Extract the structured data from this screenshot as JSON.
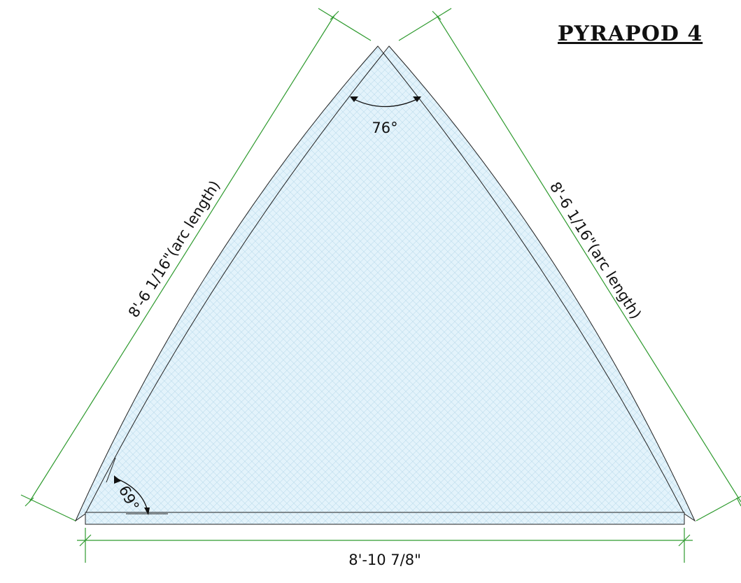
{
  "title": "PYRAPOD 4",
  "angles": {
    "top": "76°",
    "bottom_left": "69°"
  },
  "dimensions": {
    "left": "8'-6 1/16\"(arc length)",
    "right": "8'-6 1/16\"(arc length)",
    "bottom": "8'-10 7/8\""
  }
}
